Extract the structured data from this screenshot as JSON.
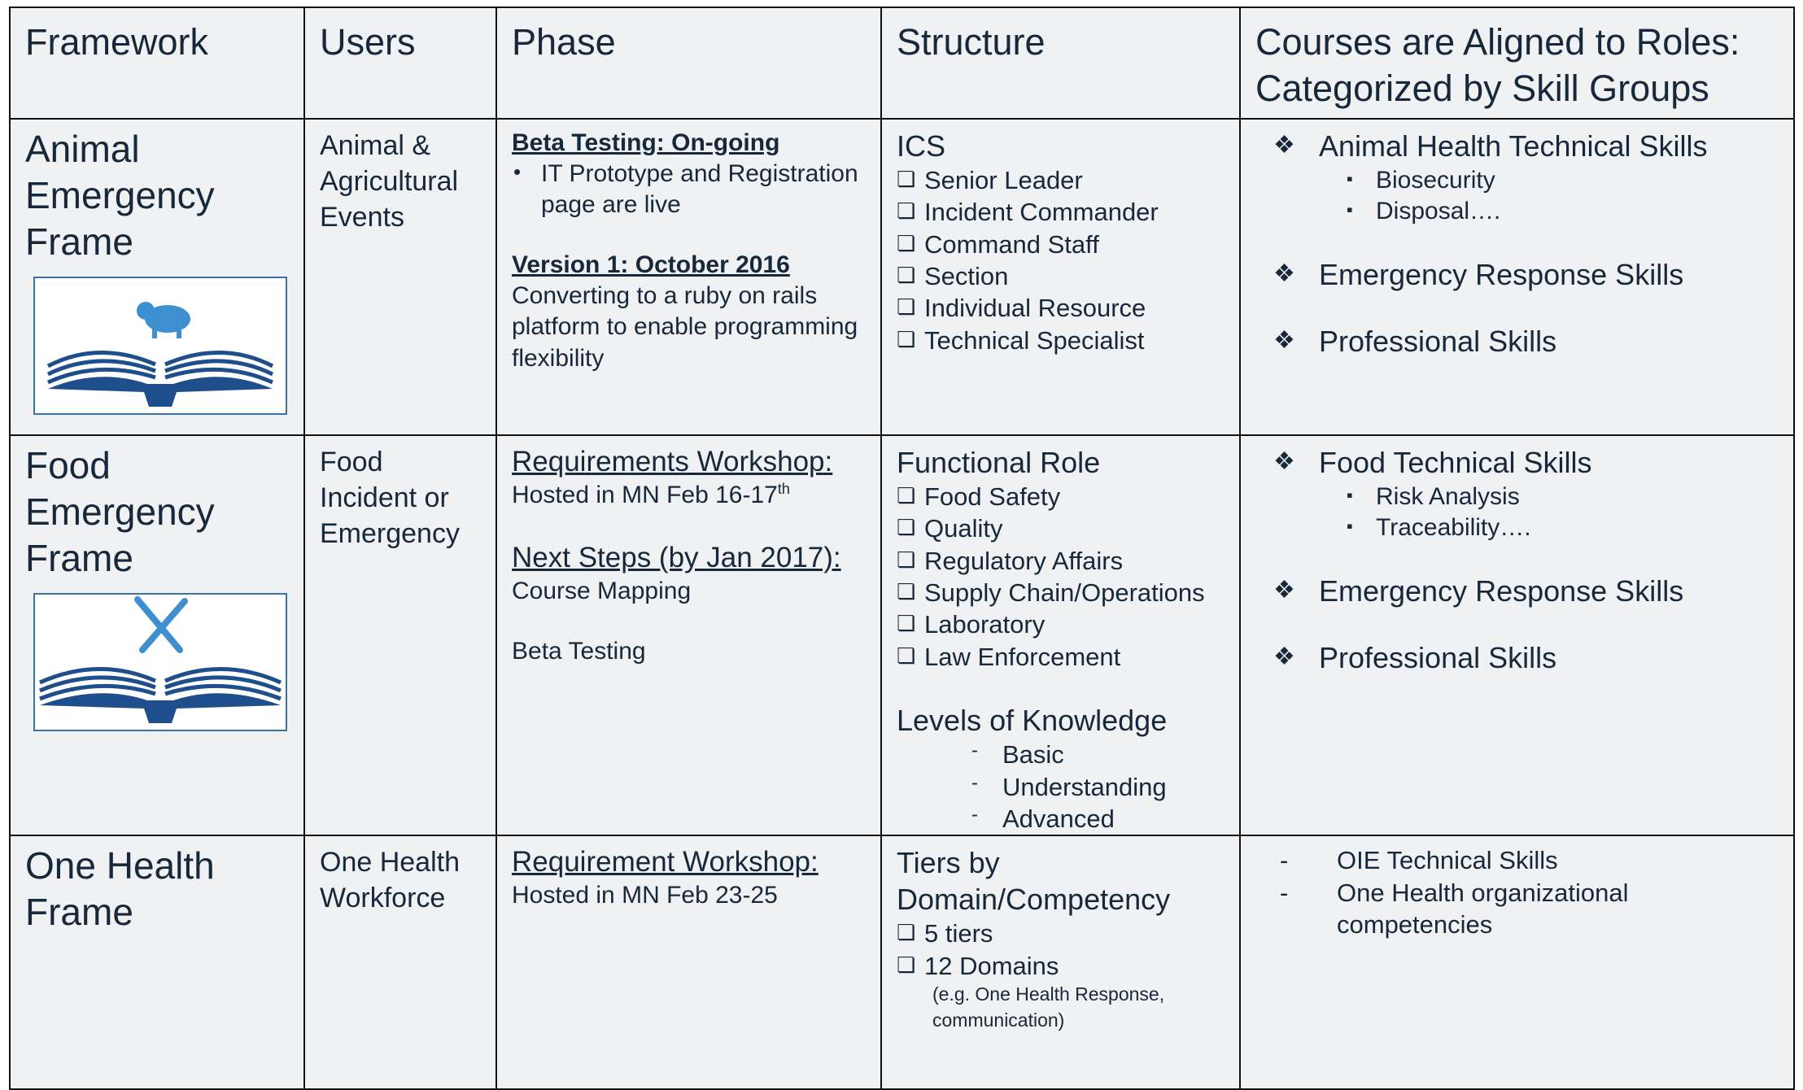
{
  "table": {
    "header": [
      "Framework",
      "Users",
      "Phase",
      "Structure",
      "Courses are Aligned to Roles: Categorized by Skill Groups"
    ],
    "rows": [
      {
        "framework": "Animal Emergency Frame",
        "users": "Animal & Agricultural Events",
        "phase": [
          [
            {
              "style": "bu",
              "text": "Beta Testing: On-going"
            },
            {
              "style": "bullet",
              "text": "IT Prototype and Registration page are live"
            }
          ],
          [
            {
              "style": "bu",
              "text": "Version 1: October 2016"
            },
            {
              "style": "text",
              "text": "Converting to a ruby on rails platform to enable programming flexibility"
            }
          ]
        ],
        "structure": [
          [
            {
              "style": "big",
              "text": "ICS"
            },
            {
              "style": "check",
              "text": "Senior Leader"
            },
            {
              "style": "check",
              "text": "Incident Commander"
            },
            {
              "style": "check",
              "text": "Command Staff"
            },
            {
              "style": "check",
              "text": "Section"
            },
            {
              "style": "check",
              "text": "Individual Resource"
            },
            {
              "style": "check",
              "text": "Technical Specialist"
            }
          ]
        ],
        "courses": [
          [
            {
              "style": "diamond",
              "text": "Animal Health Technical Skills"
            },
            {
              "style": "square",
              "text": "Biosecurity"
            },
            {
              "style": "square",
              "text": "Disposal…."
            }
          ],
          [
            {
              "style": "diamond",
              "text": "Emergency Response Skills"
            }
          ],
          [
            {
              "style": "diamond",
              "text": "Professional Skills"
            }
          ]
        ]
      },
      {
        "framework": "Food Emergency Frame",
        "users": "Food Incident or Emergency",
        "phase": [
          [
            {
              "style": "ul",
              "text": "Requirements Workshop:"
            },
            {
              "style": "text",
              "text": "Hosted in MN Feb 16-17",
              "sup": "th"
            }
          ],
          [
            {
              "style": "ul",
              "text": "Next Steps (by Jan 2017):"
            },
            {
              "style": "text",
              "text": "Course Mapping"
            }
          ],
          [
            {
              "style": "text",
              "text": "Beta Testing"
            }
          ]
        ],
        "structure": [
          [
            {
              "style": "big",
              "text": "Functional Role"
            },
            {
              "style": "check",
              "text": "Food Safety"
            },
            {
              "style": "check",
              "text": "Quality"
            },
            {
              "style": "check",
              "text": "Regulatory Affairs"
            },
            {
              "style": "check",
              "text": "Supply Chain/Operations"
            },
            {
              "style": "check",
              "text": "Laboratory"
            },
            {
              "style": "check",
              "text": "Law Enforcement"
            }
          ],
          [
            {
              "style": "big",
              "text": "Levels of Knowledge"
            },
            {
              "style": "dash",
              "text": "Basic"
            },
            {
              "style": "dash",
              "text": "Understanding"
            },
            {
              "style": "dash",
              "text": "Advanced"
            }
          ]
        ],
        "courses": [
          [
            {
              "style": "diamond",
              "text": "Food Technical Skills"
            },
            {
              "style": "square",
              "text": "Risk Analysis"
            },
            {
              "style": "square",
              "text": "Traceability…."
            }
          ],
          [
            {
              "style": "diamond",
              "text": "Emergency Response Skills"
            }
          ],
          [
            {
              "style": "diamond",
              "text": "Professional Skills"
            }
          ]
        ]
      },
      {
        "framework": "One Health Frame",
        "users": "One Health Workforce",
        "phase": [
          [
            {
              "style": "ul",
              "text": "Requirement Workshop:"
            },
            {
              "style": "text",
              "text": "Hosted in MN Feb 23-25"
            }
          ]
        ],
        "structure": [
          [
            {
              "style": "big",
              "text": "Tiers by Domain/Competency"
            },
            {
              "style": "check",
              "text": "5 tiers"
            },
            {
              "style": "check",
              "text": "12 Domains"
            },
            {
              "style": "note",
              "text": "(e.g. One Health Response, communication)"
            }
          ]
        ],
        "courses": [
          [
            {
              "style": "odash",
              "text": "OIE Technical Skills"
            },
            {
              "style": "odash",
              "text": "One Health organizational competencies"
            }
          ]
        ]
      }
    ]
  }
}
